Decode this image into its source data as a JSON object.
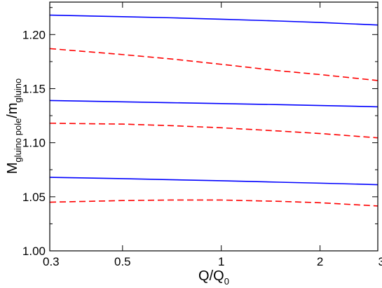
{
  "chart_data": {
    "type": "line",
    "xscale": "log",
    "xlim": [
      0.3,
      3
    ],
    "ylim": [
      1.0,
      1.23
    ],
    "xticks": [
      0.3,
      0.5,
      1,
      2,
      3
    ],
    "xtick_labels": [
      "0.3",
      "0.5",
      "1",
      "2",
      "3"
    ],
    "yticks": [
      1.0,
      1.05,
      1.1,
      1.15,
      1.2
    ],
    "ytick_labels": [
      "1.00",
      "1.05",
      "1.10",
      "1.15",
      "1.20"
    ],
    "xlabel": {
      "main": "Q/Q",
      "sub": "0"
    },
    "ylabel": {
      "p1": "M",
      "s1": "gluino pole",
      "p2": "/m",
      "s2": "gluino"
    },
    "grid": false,
    "legend": "none",
    "series": [
      {
        "color": "#0000ff",
        "style": "solid",
        "x": [
          0.3,
          0.5,
          0.7,
          1,
          1.5,
          2,
          3
        ],
        "y": [
          1.218,
          1.2165,
          1.2155,
          1.2142,
          1.2125,
          1.2112,
          1.2088
        ]
      },
      {
        "color": "#ff0000",
        "style": "dashed",
        "x": [
          0.3,
          0.5,
          0.7,
          1,
          1.5,
          2,
          3
        ],
        "y": [
          1.187,
          1.1815,
          1.1775,
          1.1725,
          1.1665,
          1.163,
          1.1575
        ]
      },
      {
        "color": "#0000ff",
        "style": "solid",
        "x": [
          0.3,
          0.5,
          0.7,
          1,
          1.5,
          2,
          3
        ],
        "y": [
          1.139,
          1.1378,
          1.137,
          1.1362,
          1.1352,
          1.1344,
          1.1332
        ]
      },
      {
        "color": "#ff0000",
        "style": "dashed",
        "x": [
          0.3,
          0.5,
          0.7,
          1,
          1.5,
          2,
          3
        ],
        "y": [
          1.118,
          1.1172,
          1.1158,
          1.1138,
          1.1108,
          1.1085,
          1.1045
        ]
      },
      {
        "color": "#0000ff",
        "style": "solid",
        "x": [
          0.3,
          0.5,
          0.7,
          1,
          1.5,
          2,
          3
        ],
        "y": [
          1.068,
          1.0668,
          1.0658,
          1.0648,
          1.0635,
          1.0626,
          1.0612
        ]
      },
      {
        "color": "#ff0000",
        "style": "dashed",
        "x": [
          0.3,
          0.5,
          0.7,
          1,
          1.5,
          2,
          3
        ],
        "y": [
          1.045,
          1.0465,
          1.047,
          1.047,
          1.0458,
          1.0445,
          1.0415
        ]
      }
    ]
  }
}
